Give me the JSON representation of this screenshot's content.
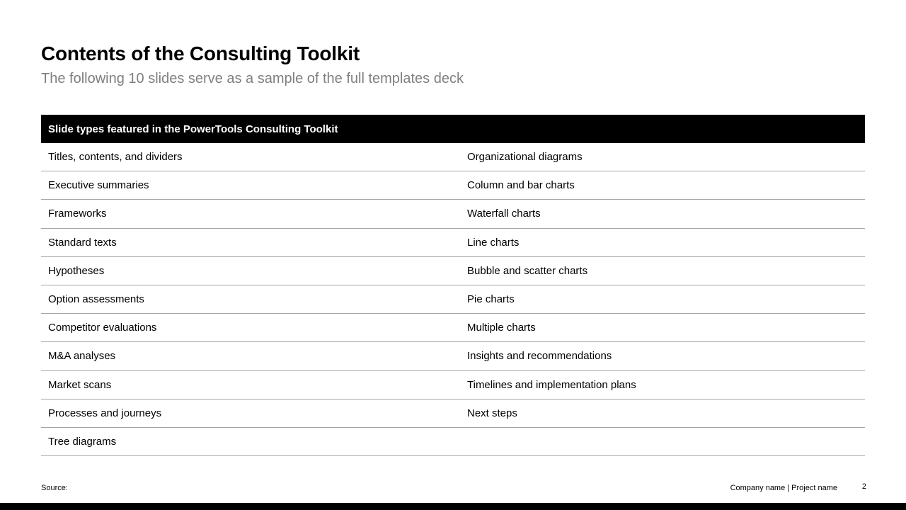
{
  "slide": {
    "title": "Contents of the Consulting Toolkit",
    "subtitle": "The following 10 slides serve as a sample of the full templates deck",
    "table": {
      "header": "Slide types featured in the PowerTools Consulting Toolkit",
      "rows": [
        {
          "left": "Titles, contents, and dividers",
          "right": "Organizational diagrams"
        },
        {
          "left": "Executive summaries",
          "right": "Column and bar charts"
        },
        {
          "left": "Frameworks",
          "right": "Waterfall charts"
        },
        {
          "left": "Standard texts",
          "right": "Line charts"
        },
        {
          "left": "Hypotheses",
          "right": "Bubble and scatter charts"
        },
        {
          "left": "Option assessments",
          "right": "Pie charts"
        },
        {
          "left": "Competitor evaluations",
          "right": "Multiple charts"
        },
        {
          "left": "M&A analyses",
          "right": "Insights and recommendations"
        },
        {
          "left": "Market scans",
          "right": "Timelines and implementation plans"
        },
        {
          "left": "Processes and journeys",
          "right": "Next steps"
        },
        {
          "left": "Tree diagrams",
          "right": ""
        }
      ]
    },
    "footer": {
      "source_label": "Source:",
      "right_text": "Company name | Project name",
      "page_number": "2"
    },
    "colors": {
      "header_bg": "#000000",
      "header_text": "#ffffff",
      "divider": "#a6a6a6",
      "subtitle_text": "#7f7f7f",
      "bottom_bar": "#000000"
    }
  }
}
